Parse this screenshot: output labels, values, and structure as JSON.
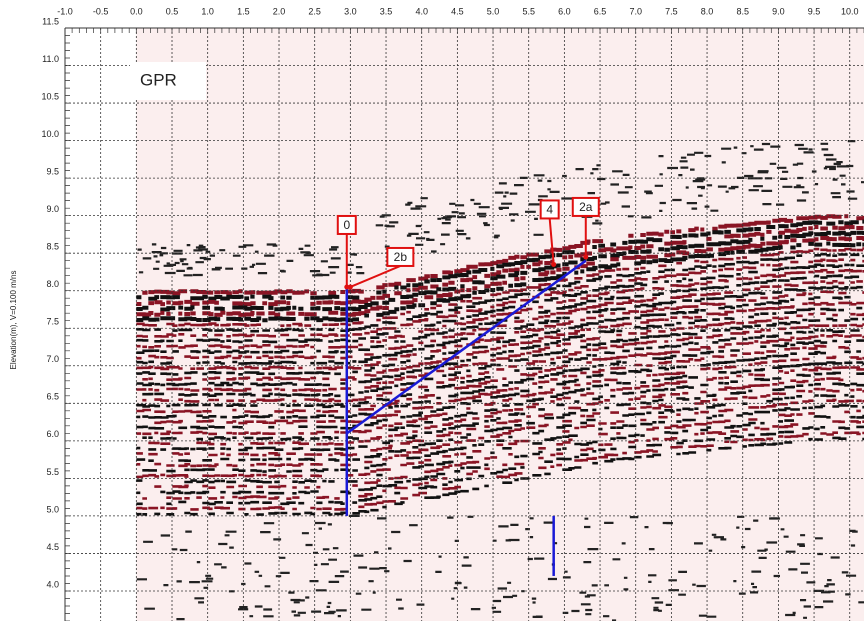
{
  "chart_data": {
    "type": "line",
    "subtitle": "GPR",
    "y_label": "Elevation(m), V=0.100 m/ns",
    "xlim": [
      -1.0,
      10.2
    ],
    "ylim": [
      3.6,
      11.5
    ],
    "xticks": [
      {
        "value": -1.0,
        "label": "-1.0"
      },
      {
        "value": -0.5,
        "label": "-0.5"
      },
      {
        "value": 0.0,
        "label": "0.0"
      },
      {
        "value": 0.5,
        "label": "0.5"
      },
      {
        "value": 1.0,
        "label": "1.0"
      },
      {
        "value": 1.5,
        "label": "1.5"
      },
      {
        "value": 2.0,
        "label": "2.0"
      },
      {
        "value": 2.5,
        "label": "2.5"
      },
      {
        "value": 3.0,
        "label": "3.0"
      },
      {
        "value": 3.5,
        "label": "3.5"
      },
      {
        "value": 4.0,
        "label": "4.0"
      },
      {
        "value": 4.5,
        "label": "4.5"
      },
      {
        "value": 5.0,
        "label": "5.0"
      },
      {
        "value": 5.5,
        "label": "5.5"
      },
      {
        "value": 6.0,
        "label": "6.0"
      },
      {
        "value": 6.5,
        "label": "6.5"
      },
      {
        "value": 7.0,
        "label": "7.0"
      },
      {
        "value": 7.5,
        "label": "7.5"
      },
      {
        "value": 8.0,
        "label": "8.0"
      },
      {
        "value": 8.5,
        "label": "8.5"
      },
      {
        "value": 9.0,
        "label": "9.0"
      },
      {
        "value": 9.5,
        "label": "9.5"
      },
      {
        "value": 10.0,
        "label": "10.0"
      }
    ],
    "yticks": [
      {
        "value": 11.5,
        "label": "11.5"
      },
      {
        "value": 11.0,
        "label": "11.0"
      },
      {
        "value": 10.5,
        "label": "10.5"
      },
      {
        "value": 10.0,
        "label": "10.0"
      },
      {
        "value": 9.5,
        "label": "9.5"
      },
      {
        "value": 9.0,
        "label": "9.0"
      },
      {
        "value": 8.5,
        "label": "8.5"
      },
      {
        "value": 8.0,
        "label": "8.0"
      },
      {
        "value": 7.5,
        "label": "7.5"
      },
      {
        "value": 7.0,
        "label": "7.0"
      },
      {
        "value": 6.5,
        "label": "6.5"
      },
      {
        "value": 6.0,
        "label": "6.0"
      },
      {
        "value": 5.5,
        "label": "5.5"
      },
      {
        "value": 5.0,
        "label": "5.0"
      },
      {
        "value": 4.5,
        "label": "4.5"
      },
      {
        "value": 4.0,
        "label": "4.0"
      }
    ],
    "grid": true,
    "series": [
      {
        "color": "#1a1ad6",
        "x": [
          2.95,
          2.95
        ],
        "values": [
          8.05,
          5.0
        ]
      },
      {
        "color": "#1a1ad6",
        "x": [
          2.95,
          6.3
        ],
        "values": [
          6.1,
          8.4
        ]
      },
      {
        "color": "#1a1ad6",
        "x": [
          5.85,
          5.85
        ],
        "values": [
          5.0,
          4.2
        ]
      }
    ],
    "annotations": [
      {
        "label": "0",
        "x": 2.95,
        "y": 8.05,
        "color": "#e01010"
      },
      {
        "label": "2b",
        "x": 3.0,
        "y": 8.05,
        "color": "#e01010"
      },
      {
        "label": "4",
        "x": 5.85,
        "y": 8.35,
        "color": "#e01010"
      },
      {
        "label": "2a",
        "x": 6.3,
        "y": 8.45,
        "color": "#e01010"
      }
    ]
  }
}
